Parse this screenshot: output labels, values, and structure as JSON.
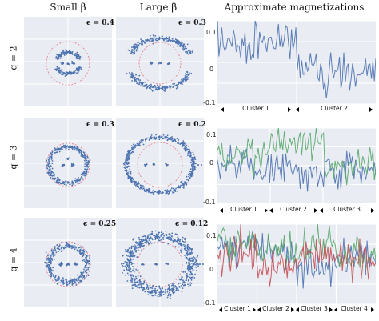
{
  "titles": {
    "col1": "Small β",
    "col2": "Large β",
    "col3": "Approximate magnetizations"
  },
  "rows": [
    {
      "q_label": "q = 2",
      "eps_small": "ϵ = 0.4",
      "eps_large": "ϵ = 0.3",
      "yticks": [
        "0.1",
        "0",
        "-0.1"
      ],
      "clusters": [
        "Cluster 1",
        "Cluster 2"
      ]
    },
    {
      "q_label": "q = 3",
      "eps_small": "ϵ = 0.3",
      "eps_large": "ϵ = 0.2",
      "yticks": [
        "0.1",
        "0",
        "-0.1"
      ],
      "clusters": [
        "Cluster 1",
        "Cluster 2",
        "Cluster 3"
      ]
    },
    {
      "q_label": "q = 4",
      "eps_small": "ϵ = 0.25",
      "eps_large": "ϵ = 0.12",
      "yticks": [
        "0.1",
        "0",
        "-0.1"
      ],
      "clusters": [
        "Cluster 1",
        "Cluster 2",
        "Cluster 3",
        "Cluster 4"
      ]
    }
  ],
  "colors": {
    "blue": "#4c72b0",
    "green": "#55a868",
    "red": "#c44e52",
    "circle": "#e88a9a",
    "panel_bg": "#e9ecf2"
  },
  "chart_data": [
    {
      "type": "scatter",
      "row": "q = 2",
      "panel": "Small β",
      "annotation": "ϵ = 0.4",
      "grid": true
    },
    {
      "type": "scatter",
      "row": "q = 2",
      "panel": "Large β",
      "annotation": "ϵ = 0.3",
      "grid": true
    },
    {
      "type": "line",
      "row": "q = 2",
      "panel": "Approximate magnetizations",
      "ylim": [
        -0.1,
        0.1
      ],
      "yticks": [
        0.1,
        0,
        -0.1
      ],
      "grid": true,
      "clusters": [
        "Cluster 1",
        "Cluster 2"
      ],
      "series": [
        {
          "color": "blue",
          "cluster_means": [
            0.05,
            -0.02
          ]
        }
      ]
    },
    {
      "type": "scatter",
      "row": "q = 3",
      "panel": "Small β",
      "annotation": "ϵ = 0.3",
      "grid": true
    },
    {
      "type": "scatter",
      "row": "q = 3",
      "panel": "Large β",
      "annotation": "ϵ = 0.2",
      "grid": true
    },
    {
      "type": "line",
      "row": "q = 3",
      "panel": "Approximate magnetizations",
      "ylim": [
        -0.1,
        0.1
      ],
      "yticks": [
        0.1,
        0,
        -0.1
      ],
      "grid": true,
      "clusters": [
        "Cluster 1",
        "Cluster 2",
        "Cluster 3"
      ],
      "series": [
        {
          "color": "blue",
          "cluster_means": [
            0.0,
            -0.01,
            0.0
          ]
        },
        {
          "color": "green",
          "cluster_means": [
            0.03,
            0.06,
            0.0
          ]
        }
      ]
    },
    {
      "type": "scatter",
      "row": "q = 4",
      "panel": "Small β",
      "annotation": "ϵ = 0.25",
      "grid": true
    },
    {
      "type": "scatter",
      "row": "q = 4",
      "panel": "Large β",
      "annotation": "ϵ = 0.12",
      "grid": true
    },
    {
      "type": "line",
      "row": "q = 4",
      "panel": "Approximate magnetizations",
      "ylim": [
        -0.1,
        0.1
      ],
      "yticks": [
        0.1,
        0,
        -0.1
      ],
      "grid": true,
      "clusters": [
        "Cluster 1",
        "Cluster 2",
        "Cluster 3",
        "Cluster 4"
      ],
      "series": [
        {
          "color": "blue",
          "cluster_means": [
            0.05,
            0.02,
            0.0,
            0.02
          ]
        },
        {
          "color": "green",
          "cluster_means": [
            0.06,
            0.03,
            0.05,
            0.02
          ]
        },
        {
          "color": "red",
          "cluster_means": [
            0.03,
            -0.01,
            0.02,
            0.01
          ]
        }
      ]
    }
  ]
}
